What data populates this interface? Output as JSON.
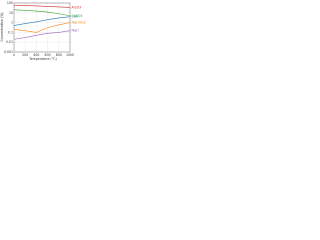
{
  "chart_data": {
    "type": "line",
    "x_label": "Temperature (°C)",
    "y_label": "Concentration (%)",
    "x": [
      0,
      200,
      400,
      600,
      800,
      1000
    ],
    "xlim": [
      0,
      1000
    ],
    "xticks": [
      0,
      200,
      400,
      600,
      800,
      1000
    ],
    "ylim": [
      0.001,
      100
    ],
    "yticks": [
      0.001,
      0.01,
      0.1,
      1,
      10,
      100
    ],
    "log_y": true,
    "grid": true,
    "series": [
      {
        "name": "Al2O3",
        "color": "#d62728",
        "values": [
          60,
          55,
          50,
          45,
          40,
          35
        ]
      },
      {
        "name": "CaCO3",
        "color": "#2ca02c",
        "values": [
          20,
          18,
          15,
          12,
          8,
          5
        ]
      },
      {
        "name": "CaO",
        "color": "#1f77b4",
        "values": [
          0.5,
          0.8,
          1.2,
          2,
          3,
          4
        ]
      },
      {
        "name": "Mg(OH)2",
        "color": "#ff7f0e",
        "values": [
          0.2,
          0.15,
          0.1,
          0.3,
          0.6,
          1
        ]
      },
      {
        "name": "MgO",
        "color": "#9467bd",
        "values": [
          0.02,
          0.03,
          0.05,
          0.08,
          0.1,
          0.15
        ]
      }
    ]
  }
}
